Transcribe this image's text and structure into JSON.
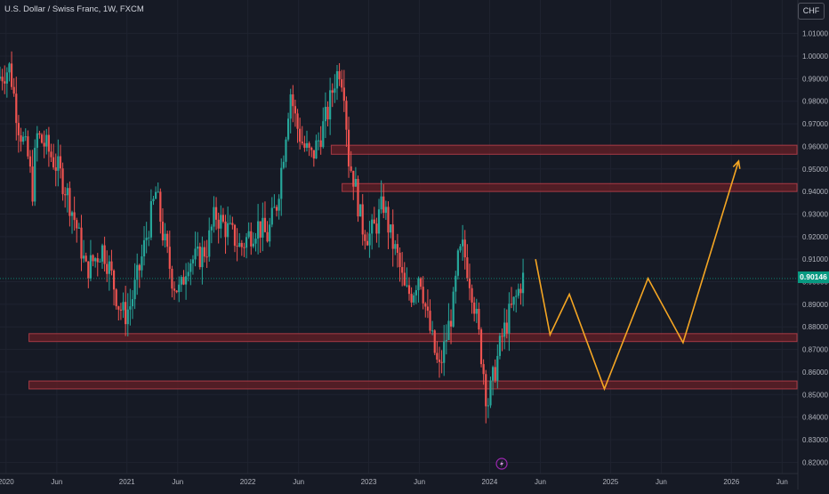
{
  "title": "U.S. Dollar / Swiss Franc, 1W, FXCM",
  "currency_button": "CHF",
  "last_price": "0.90146",
  "colors": {
    "background": "#161a25",
    "up": "#26a69a",
    "down": "#ef5350",
    "zone_fill": "#5c1f26",
    "zone_border": "#a83a45",
    "projection": "#f5a623",
    "grid": "#1f2330",
    "axis_text": "#b2b5be",
    "last_price_line": "#089981"
  },
  "chart_data": {
    "type": "candlestick",
    "title": "U.S. Dollar / Swiss Franc, 1W, FXCM",
    "y_axis": {
      "ticks": [
        0.82,
        0.83,
        0.84,
        0.85,
        0.86,
        0.87,
        0.88,
        0.89,
        0.9,
        0.91,
        0.92,
        0.93,
        0.94,
        0.95,
        0.96,
        0.97,
        0.98,
        0.99,
        1.0,
        1.01
      ],
      "tick_labels": [
        "0.82000",
        "0.83000",
        "0.84000",
        "0.85000",
        "0.86000",
        "0.87000",
        "0.88000",
        "0.89000",
        "0.90000",
        "0.91000",
        "0.92000",
        "0.93000",
        "0.94000",
        "0.95000",
        "0.96000",
        "0.97000",
        "0.98000",
        "0.99000",
        "1.00000",
        "1.01000"
      ],
      "range": [
        0.815,
        1.015
      ]
    },
    "x_axis": {
      "range_years": [
        2019.95,
        2026.55
      ],
      "ticks": [
        2020.0,
        2020.42,
        2021.0,
        2021.42,
        2022.0,
        2022.42,
        2023.0,
        2023.42,
        2024.0,
        2024.42,
        2025.0,
        2025.42,
        2026.0,
        2026.42
      ],
      "tick_labels": [
        "2020",
        "Jun",
        "2021",
        "Jun",
        "2022",
        "Jun",
        "2023",
        "Jun",
        "2024",
        "Jun",
        "2025",
        "Jun",
        "2026",
        "Jun"
      ]
    },
    "price_path": [
      [
        2019.95,
        0.99
      ],
      [
        2020.05,
        0.995
      ],
      [
        2020.12,
        0.97
      ],
      [
        2020.2,
        0.955
      ],
      [
        2020.24,
        0.94
      ],
      [
        2020.27,
        0.965
      ],
      [
        2020.35,
        0.96
      ],
      [
        2020.45,
        0.95
      ],
      [
        2020.52,
        0.94
      ],
      [
        2020.6,
        0.925
      ],
      [
        2020.68,
        0.905
      ],
      [
        2020.75,
        0.91
      ],
      [
        2020.82,
        0.915
      ],
      [
        2020.88,
        0.905
      ],
      [
        2020.95,
        0.89
      ],
      [
        2021.0,
        0.885
      ],
      [
        2021.05,
        0.89
      ],
      [
        2021.12,
        0.905
      ],
      [
        2021.2,
        0.925
      ],
      [
        2021.26,
        0.94
      ],
      [
        2021.32,
        0.92
      ],
      [
        2021.4,
        0.9
      ],
      [
        2021.46,
        0.895
      ],
      [
        2021.52,
        0.91
      ],
      [
        2021.6,
        0.91
      ],
      [
        2021.68,
        0.915
      ],
      [
        2021.75,
        0.93
      ],
      [
        2021.82,
        0.925
      ],
      [
        2021.9,
        0.92
      ],
      [
        2021.96,
        0.915
      ],
      [
        2022.02,
        0.92
      ],
      [
        2022.1,
        0.925
      ],
      [
        2022.18,
        0.92
      ],
      [
        2022.26,
        0.935
      ],
      [
        2022.32,
        0.96
      ],
      [
        2022.37,
        0.985
      ],
      [
        2022.42,
        0.97
      ],
      [
        2022.48,
        0.96
      ],
      [
        2022.55,
        0.955
      ],
      [
        2022.62,
        0.965
      ],
      [
        2022.68,
        0.975
      ],
      [
        2022.74,
        0.99
      ],
      [
        2022.78,
        0.995
      ],
      [
        2022.82,
        0.985
      ],
      [
        2022.85,
        0.955
      ],
      [
        2022.9,
        0.945
      ],
      [
        2022.96,
        0.925
      ],
      [
        2023.02,
        0.92
      ],
      [
        2023.08,
        0.925
      ],
      [
        2023.14,
        0.935
      ],
      [
        2023.2,
        0.92
      ],
      [
        2023.26,
        0.91
      ],
      [
        2023.32,
        0.895
      ],
      [
        2023.38,
        0.895
      ],
      [
        2023.44,
        0.905
      ],
      [
        2023.5,
        0.885
      ],
      [
        2023.56,
        0.87
      ],
      [
        2023.6,
        0.86
      ],
      [
        2023.66,
        0.875
      ],
      [
        2023.72,
        0.89
      ],
      [
        2023.76,
        0.91
      ],
      [
        2023.8,
        0.915
      ],
      [
        2023.84,
        0.905
      ],
      [
        2023.88,
        0.895
      ],
      [
        2023.92,
        0.88
      ],
      [
        2023.97,
        0.86
      ],
      [
        2024.0,
        0.845
      ],
      [
        2024.06,
        0.86
      ],
      [
        2024.12,
        0.875
      ],
      [
        2024.18,
        0.885
      ],
      [
        2024.24,
        0.893
      ],
      [
        2024.29,
        0.9015
      ]
    ],
    "zones": [
      {
        "y_low": 0.9565,
        "y_high": 0.9605,
        "x_start": 2022.69
      },
      {
        "y_low": 0.94,
        "y_high": 0.9435,
        "x_start": 2022.78
      },
      {
        "y_low": 0.8735,
        "y_high": 0.877,
        "x_start": 2020.19
      },
      {
        "y_low": 0.8525,
        "y_high": 0.856,
        "x_start": 2020.19
      }
    ],
    "projection": [
      [
        2024.38,
        0.91
      ],
      [
        2024.5,
        0.8765
      ],
      [
        2024.66,
        0.8945
      ],
      [
        2024.95,
        0.8525
      ],
      [
        2025.31,
        0.9015
      ],
      [
        2025.6,
        0.873
      ],
      [
        2026.06,
        0.9535
      ]
    ]
  }
}
